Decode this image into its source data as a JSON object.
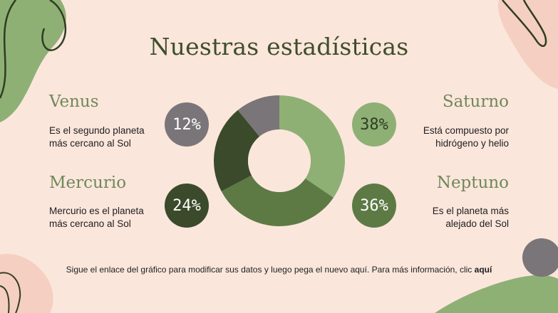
{
  "title": "Nuestras estadísticas",
  "stats": [
    {
      "name": "Venus",
      "line1": "Es el segundo planeta",
      "line2": "más cercano al Sol",
      "badge": "12%",
      "badge_color": "#7a7578",
      "badge_text_color": "#ffffff"
    },
    {
      "name": "Mercurio",
      "line1": "Mercurio es el planeta",
      "line2": "más cercano al Sol",
      "badge": "24%",
      "badge_color": "#3a4a2a",
      "badge_text_color": "#ffffff"
    },
    {
      "name": "Saturno",
      "line1": "Está compuesto por",
      "line2": "hidrógeno y helio",
      "badge": "38%",
      "badge_color": "#8fb075",
      "badge_text_color": "#2f3d22"
    },
    {
      "name": "Neptuno",
      "line1": "Es el planeta más",
      "line2": "alejado del Sol",
      "badge": "36%",
      "badge_color": "#5d7a45",
      "badge_text_color": "#ffffff"
    }
  ],
  "footer": {
    "text": "Sigue el enlace del gráfico para modificar sus datos y luego pega el nuevo aquí. Para más información, clic ",
    "link": "aquí"
  },
  "chart_data": {
    "type": "pie",
    "variant": "donut",
    "categories": [
      "Saturno",
      "Neptuno",
      "Mercurio",
      "Venus"
    ],
    "values": [
      38,
      36,
      24,
      12
    ],
    "colors": [
      "#8fb075",
      "#5d7a45",
      "#3a4a2a",
      "#7a7578"
    ],
    "start": "top, clockwise"
  }
}
